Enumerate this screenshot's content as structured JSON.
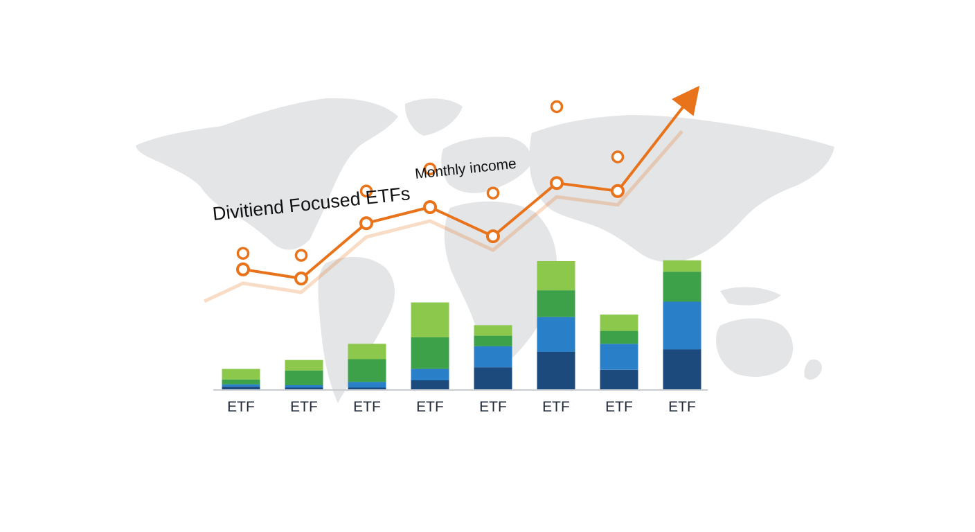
{
  "chart_data": {
    "type": "bar",
    "title": "Divitiend Focused ETFs",
    "annotation": "Monthly income",
    "categories": [
      "ETF",
      "ETF",
      "ETF",
      "ETF",
      "ETF",
      "ETF",
      "ETF",
      "ETF"
    ],
    "stacked": true,
    "series": [
      {
        "color": "#1d4a7d",
        "values": [
          4,
          3,
          3,
          12,
          28,
          47,
          25,
          50
        ]
      },
      {
        "color": "#2a7fc9",
        "values": [
          3,
          3,
          7,
          14,
          26,
          43,
          32,
          59
        ]
      },
      {
        "color": "#3da149",
        "values": [
          6,
          18,
          28,
          39,
          13,
          33,
          16,
          37
        ]
      },
      {
        "color": "#8cc84b",
        "values": [
          13,
          13,
          19,
          43,
          13,
          36,
          20,
          14
        ]
      }
    ],
    "ylim": [
      0,
      170
    ],
    "overlay_line": {
      "color": "#e8731a",
      "values": [
        118,
        109,
        164,
        180,
        151,
        204,
        196,
        250
      ],
      "marker_values": [
        134,
        132,
        196,
        218,
        194,
        280,
        230
      ],
      "arrow": true
    },
    "background": "world-map",
    "colors": {
      "line": "#e8731a",
      "line_shadow": "#f6c9a3",
      "map": "#e3e5e7",
      "axis": "#c9ccd0"
    }
  }
}
